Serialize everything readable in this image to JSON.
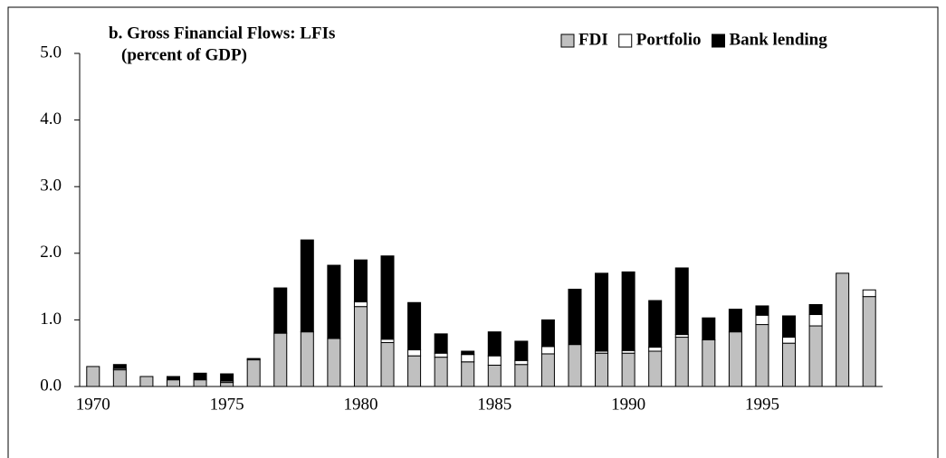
{
  "chart_data": {
    "type": "bar",
    "stacked": true,
    "title": "b. Gross Financial Flows: LFIs",
    "subtitle": "(percent of GDP)",
    "categories": [
      "1970",
      null,
      null,
      null,
      null,
      "1975",
      null,
      null,
      null,
      null,
      "1980",
      null,
      null,
      null,
      null,
      "1985",
      null,
      null,
      null,
      null,
      "1990",
      null,
      null,
      null,
      null,
      "1995",
      null,
      null,
      null,
      null
    ],
    "series": [
      {
        "name": "FDI",
        "color": "#c0c0c0",
        "values": [
          0.3,
          0.25,
          0.15,
          0.1,
          0.1,
          0.06,
          0.4,
          0.8,
          0.82,
          0.72,
          1.2,
          0.66,
          0.46,
          0.44,
          0.37,
          0.32,
          0.33,
          0.49,
          0.63,
          0.5,
          0.5,
          0.53,
          0.74,
          0.7,
          0.82,
          0.93,
          0.65,
          0.91,
          1.7,
          1.35
        ]
      },
      {
        "name": "Portfolio",
        "color": "#ffffff",
        "values": [
          0,
          0.02,
          0,
          0.01,
          0.01,
          0.02,
          0.01,
          0,
          0,
          0,
          0.07,
          0.05,
          0.09,
          0.06,
          0.11,
          0.14,
          0.06,
          0.11,
          0,
          0.03,
          0.04,
          0.06,
          0.04,
          0,
          0,
          0.14,
          0.09,
          0.17,
          0,
          0.1
        ]
      },
      {
        "name": "Bank lending",
        "color": "#000000",
        "values": [
          0,
          0.06,
          0,
          0.04,
          0.09,
          0.11,
          0.01,
          0.68,
          1.38,
          1.1,
          0.63,
          1.25,
          0.71,
          0.29,
          0.05,
          0.36,
          0.29,
          0.4,
          0.83,
          1.17,
          1.18,
          0.7,
          1.0,
          0.33,
          0.34,
          0.14,
          0.32,
          0.15,
          0,
          0
        ]
      }
    ],
    "ylim": [
      0,
      5
    ],
    "yticks": [
      {
        "value": 0,
        "label": "0.0"
      },
      {
        "value": 1,
        "label": "1.0"
      },
      {
        "value": 2,
        "label": "2.0"
      },
      {
        "value": 3,
        "label": "3.0"
      },
      {
        "value": 4,
        "label": "4.0"
      },
      {
        "value": 5,
        "label": "5.0"
      }
    ],
    "legend": "top-right"
  }
}
